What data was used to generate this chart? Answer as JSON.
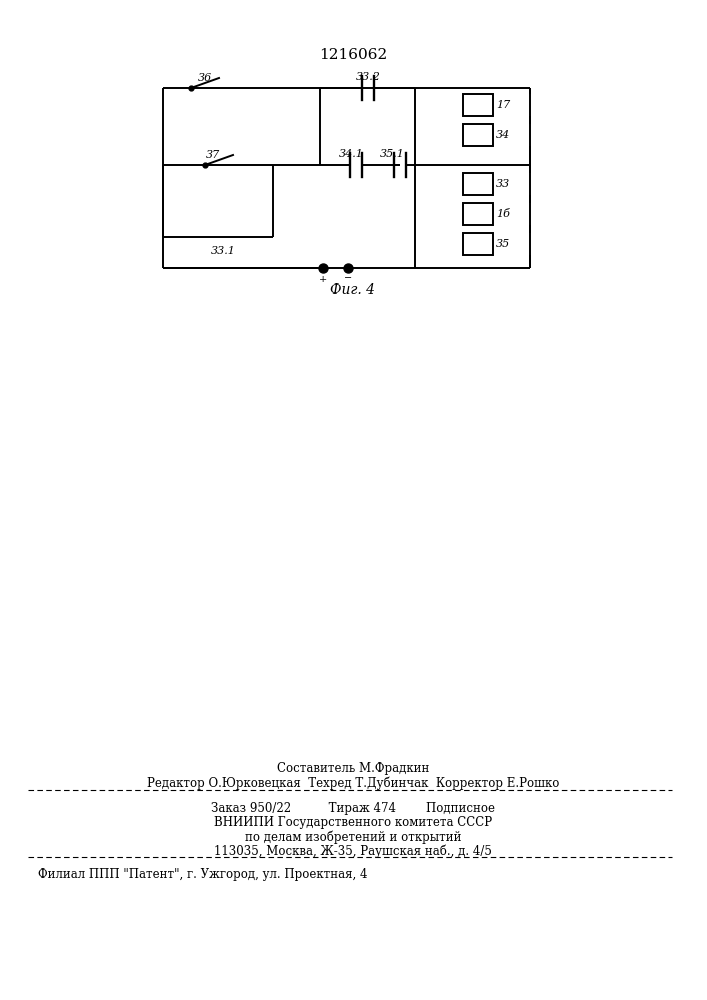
{
  "title": "1216062",
  "fig_label": "Фиг. 4",
  "background_color": "#ffffff",
  "line_color": "#000000",
  "footer_lines": [
    "Составитель М.Фрадкин",
    "Редактор О.Юрковецкая  Техред Т.Дубинчак  Корректор Е.Рошко",
    "Заказ 950/22          Тираж 474        Подписное",
    "ВНИИПИ Государственного комитета СССР",
    "по делам изобретений и открытий",
    "113035, Москва, Ж-35, Раушская наб., д. 4/5",
    "Филиал ППП \"Патент\", г. Ужгород, ул. Проектная, 4"
  ]
}
